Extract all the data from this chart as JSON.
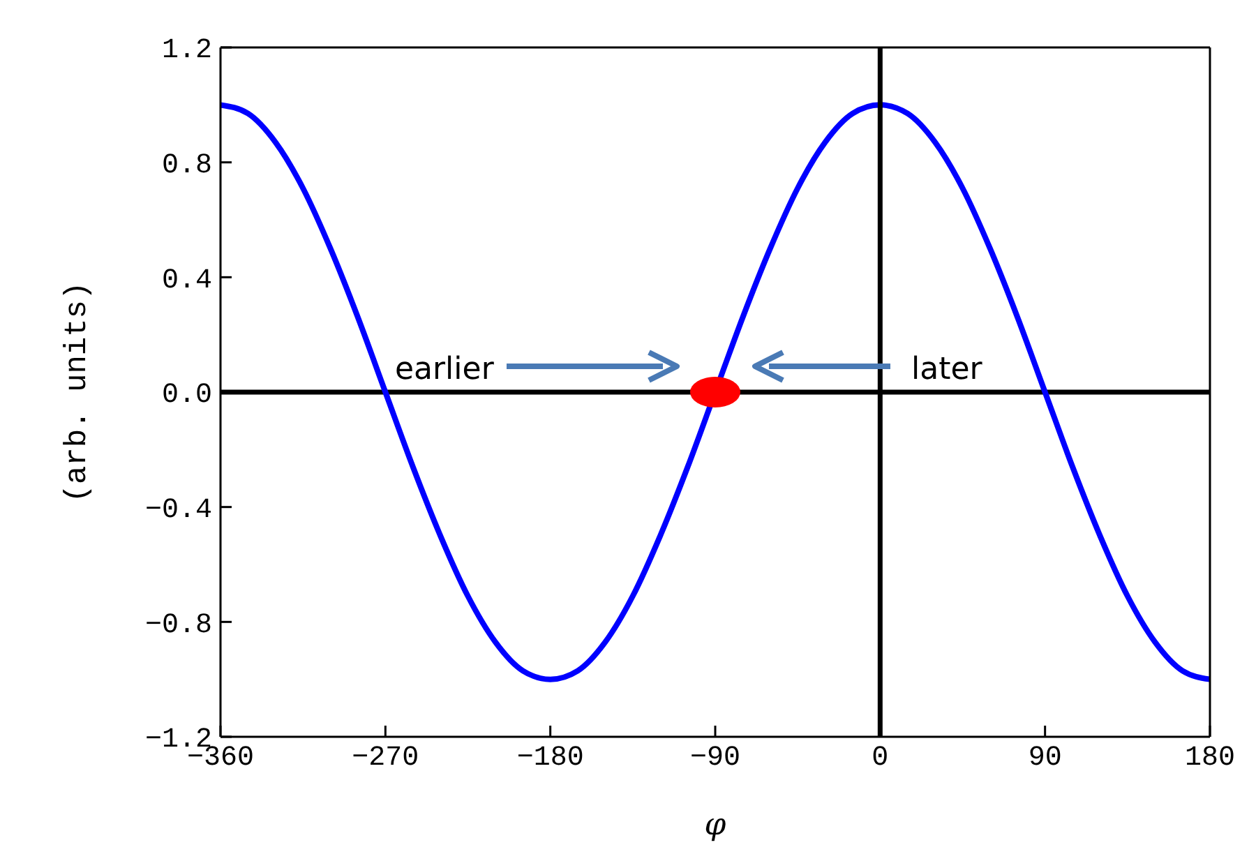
{
  "chart_data": {
    "type": "line",
    "xlabel": "φ",
    "ylabel": "(arb. units)",
    "xlim": [
      -360,
      180
    ],
    "ylim": [
      -1.2,
      1.2
    ],
    "xticks": [
      {
        "value": -360,
        "label": "−360"
      },
      {
        "value": -270,
        "label": "−270"
      },
      {
        "value": -180,
        "label": "−180"
      },
      {
        "value": -90,
        "label": "−90"
      },
      0,
      90,
      180
    ],
    "yticks": [
      {
        "value": -1.2,
        "label": "−1.2"
      },
      {
        "value": -0.8,
        "label": "−0.8"
      },
      {
        "value": -0.4,
        "label": "−0.4"
      },
      {
        "value": 0,
        "label": "0.0"
      },
      0.4,
      0.8,
      1.2
    ],
    "series": [
      {
        "color": "#0000ff",
        "marker": "none",
        "x": [
          -360,
          -345,
          -330,
          -315,
          -300,
          -285,
          -270,
          -255,
          -240,
          -225,
          -210,
          -195,
          -180,
          -165,
          -150,
          -135,
          -120,
          -105,
          -90,
          -75,
          -60,
          -45,
          -30,
          -15,
          0,
          15,
          30,
          45,
          60,
          75,
          90,
          105,
          120,
          135,
          150,
          165,
          180
        ],
        "values": [
          1,
          0.97,
          0.87,
          0.71,
          0.5,
          0.26,
          0,
          -0.26,
          -0.5,
          -0.71,
          -0.87,
          -0.97,
          -1,
          -0.97,
          -0.87,
          -0.71,
          -0.5,
          -0.26,
          0,
          0.26,
          0.5,
          0.71,
          0.87,
          0.97,
          1,
          0.97,
          0.87,
          0.71,
          0.5,
          0.26,
          0,
          -0.26,
          -0.5,
          -0.71,
          -0.87,
          -0.97,
          -1
        ]
      },
      {
        "type": "scatter",
        "color": "#ff0000",
        "marker": "circle",
        "x": [
          -90
        ],
        "values": [
          0
        ]
      }
    ],
    "ref_lines": [
      {
        "axis": "x",
        "value": 0,
        "color": "#000000"
      },
      {
        "axis": "y",
        "value": 0,
        "color": "#000000"
      }
    ],
    "annotations": [
      "earlier",
      "later"
    ]
  }
}
